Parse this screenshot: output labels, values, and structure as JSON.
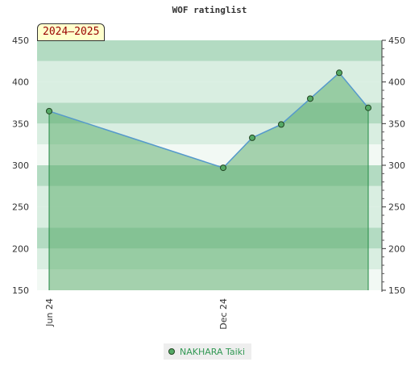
{
  "chart_data": {
    "type": "line",
    "title": "WOF ratinglist",
    "badge": "2024–2025",
    "x_ticks": [
      "Jun 24",
      "Dec 24"
    ],
    "y_ticks": [
      150,
      200,
      250,
      300,
      350,
      400,
      450
    ],
    "ylim": [
      150,
      450
    ],
    "series": [
      {
        "name": "NAKHARA Taiki",
        "points": [
          {
            "x": "2024-06",
            "y": 365
          },
          {
            "x": "2024-12",
            "y": 297
          },
          {
            "x": "2025-01",
            "y": 333
          },
          {
            "x": "2025-02",
            "y": 349
          },
          {
            "x": "2025-03",
            "y": 380
          },
          {
            "x": "2025-04",
            "y": 411
          },
          {
            "x": "2025-05",
            "y": 369
          }
        ]
      }
    ],
    "legend_position": "bottom-center",
    "colors": {
      "line": "#5599cc",
      "marker": "#55aa66",
      "fill": "#55aa66",
      "band_dark": "#b3dbc2",
      "band_light": "#d9eee1"
    }
  }
}
